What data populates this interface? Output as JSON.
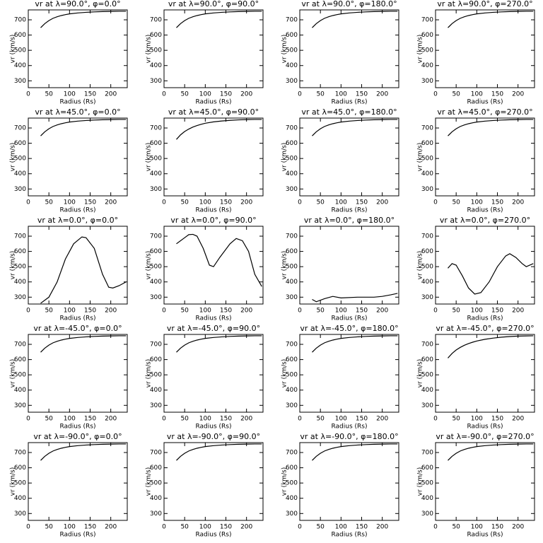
{
  "chart_data": [
    {
      "type": "line",
      "title": "vr at λ=90.0°, φ=0.0°",
      "xlabel": "Radius (Rs)",
      "ylabel": "vr (km/s)",
      "x": [
        30,
        40,
        50,
        60,
        70,
        80,
        90,
        100,
        120,
        140,
        160,
        180,
        200,
        220,
        237
      ],
      "values": [
        648,
        675,
        695,
        710,
        720,
        728,
        734,
        739,
        745,
        749,
        752,
        754,
        755,
        756,
        756
      ],
      "xlim": [
        0,
        240
      ],
      "ylim": [
        255,
        765
      ],
      "xticks": [
        0,
        50,
        100,
        150,
        200
      ],
      "yticks": [
        300,
        400,
        500,
        600,
        700
      ],
      "color": "#000000"
    },
    {
      "type": "line",
      "title": "vr at λ=90.0°, φ=90.0°",
      "xlabel": "Radius (Rs)",
      "ylabel": "vr (km/s)",
      "x": [
        30,
        40,
        50,
        60,
        70,
        80,
        90,
        100,
        120,
        140,
        160,
        180,
        200,
        220,
        237
      ],
      "values": [
        648,
        675,
        695,
        710,
        720,
        728,
        734,
        739,
        745,
        749,
        752,
        754,
        755,
        756,
        756
      ],
      "xlim": [
        0,
        240
      ],
      "ylim": [
        255,
        765
      ],
      "xticks": [
        0,
        50,
        100,
        150,
        200
      ],
      "yticks": [
        300,
        400,
        500,
        600,
        700
      ],
      "color": "#000000"
    },
    {
      "type": "line",
      "title": "vr at λ=90.0°, φ=180.0°",
      "xlabel": "Radius (Rs)",
      "ylabel": "vr (km/s)",
      "x": [
        30,
        40,
        50,
        60,
        70,
        80,
        90,
        100,
        120,
        140,
        160,
        180,
        200,
        220,
        237
      ],
      "values": [
        648,
        675,
        695,
        710,
        720,
        728,
        734,
        739,
        745,
        749,
        752,
        754,
        755,
        756,
        756
      ],
      "xlim": [
        0,
        240
      ],
      "ylim": [
        255,
        765
      ],
      "xticks": [
        0,
        50,
        100,
        150,
        200
      ],
      "yticks": [
        300,
        400,
        500,
        600,
        700
      ],
      "color": "#000000"
    },
    {
      "type": "line",
      "title": "vr at λ=90.0°, φ=270.0°",
      "xlabel": "Radius (Rs)",
      "ylabel": "vr (km/s)",
      "x": [
        30,
        40,
        50,
        60,
        70,
        80,
        90,
        100,
        120,
        140,
        160,
        180,
        200,
        220,
        237
      ],
      "values": [
        648,
        675,
        695,
        710,
        720,
        728,
        734,
        739,
        745,
        749,
        752,
        754,
        755,
        756,
        756
      ],
      "xlim": [
        0,
        240
      ],
      "ylim": [
        255,
        765
      ],
      "xticks": [
        0,
        50,
        100,
        150,
        200
      ],
      "yticks": [
        300,
        400,
        500,
        600,
        700
      ],
      "color": "#000000"
    },
    {
      "type": "line",
      "title": "vr at λ=45.0°, φ=0.0°",
      "xlabel": "Radius (Rs)",
      "ylabel": "vr (km/s)",
      "x": [
        30,
        40,
        50,
        60,
        70,
        80,
        90,
        100,
        120,
        140,
        160,
        180,
        200,
        220,
        237
      ],
      "values": [
        648,
        675,
        695,
        710,
        720,
        728,
        734,
        739,
        745,
        749,
        752,
        754,
        755,
        756,
        756
      ],
      "xlim": [
        0,
        240
      ],
      "ylim": [
        255,
        765
      ],
      "xticks": [
        0,
        50,
        100,
        150,
        200
      ],
      "yticks": [
        300,
        400,
        500,
        600,
        700
      ],
      "color": "#000000"
    },
    {
      "type": "line",
      "title": "vr at λ=45.0°, φ=90.0°",
      "xlabel": "Radius (Rs)",
      "ylabel": "vr (km/s)",
      "x": [
        30,
        40,
        50,
        60,
        70,
        80,
        90,
        100,
        120,
        140,
        160,
        180,
        200,
        220,
        237
      ],
      "values": [
        625,
        655,
        677,
        693,
        706,
        716,
        724,
        731,
        740,
        746,
        750,
        753,
        755,
        756,
        756
      ],
      "xlim": [
        0,
        240
      ],
      "ylim": [
        255,
        765
      ],
      "xticks": [
        0,
        50,
        100,
        150,
        200
      ],
      "yticks": [
        300,
        400,
        500,
        600,
        700
      ],
      "color": "#000000"
    },
    {
      "type": "line",
      "title": "vr at λ=45.0°, φ=180.0°",
      "xlabel": "Radius (Rs)",
      "ylabel": "vr (km/s)",
      "x": [
        30,
        40,
        50,
        60,
        70,
        80,
        90,
        100,
        120,
        140,
        160,
        180,
        200,
        220,
        237
      ],
      "values": [
        648,
        675,
        695,
        710,
        720,
        728,
        734,
        739,
        745,
        749,
        752,
        754,
        755,
        756,
        756
      ],
      "xlim": [
        0,
        240
      ],
      "ylim": [
        255,
        765
      ],
      "xticks": [
        0,
        50,
        100,
        150,
        200
      ],
      "yticks": [
        300,
        400,
        500,
        600,
        700
      ],
      "color": "#000000"
    },
    {
      "type": "line",
      "title": "vr at λ=45.0°, φ=270.0°",
      "xlabel": "Radius (Rs)",
      "ylabel": "vr (km/s)",
      "x": [
        30,
        40,
        50,
        60,
        70,
        80,
        90,
        100,
        120,
        140,
        160,
        180,
        200,
        220,
        237
      ],
      "values": [
        648,
        675,
        695,
        710,
        720,
        728,
        734,
        739,
        745,
        749,
        752,
        754,
        755,
        756,
        756
      ],
      "xlim": [
        0,
        240
      ],
      "ylim": [
        255,
        765
      ],
      "xticks": [
        0,
        50,
        100,
        150,
        200
      ],
      "yticks": [
        300,
        400,
        500,
        600,
        700
      ],
      "color": "#000000"
    },
    {
      "type": "line",
      "title": "vr at λ=0.0°, φ=0.0°",
      "xlabel": "Radius (Rs)",
      "ylabel": "vr (km/s)",
      "x": [
        30,
        50,
        70,
        90,
        110,
        130,
        140,
        160,
        180,
        195,
        205,
        220,
        237
      ],
      "values": [
        260,
        300,
        400,
        550,
        650,
        695,
        690,
        620,
        450,
        365,
        360,
        375,
        400
      ],
      "xlim": [
        0,
        240
      ],
      "ylim": [
        255,
        765
      ],
      "xticks": [
        0,
        50,
        100,
        150,
        200
      ],
      "yticks": [
        300,
        400,
        500,
        600,
        700
      ],
      "color": "#000000"
    },
    {
      "type": "line",
      "title": "vr at λ=0.0°, φ=90.0°",
      "xlabel": "Radius (Rs)",
      "ylabel": "vr (km/s)",
      "x": [
        30,
        50,
        60,
        70,
        80,
        95,
        110,
        120,
        135,
        160,
        175,
        190,
        205,
        220,
        237
      ],
      "values": [
        650,
        690,
        710,
        712,
        700,
        620,
        510,
        500,
        560,
        650,
        685,
        670,
        600,
        450,
        370
      ],
      "xlim": [
        0,
        240
      ],
      "ylim": [
        255,
        765
      ],
      "xticks": [
        0,
        50,
        100,
        150,
        200
      ],
      "yticks": [
        300,
        400,
        500,
        600,
        700
      ],
      "color": "#000000"
    },
    {
      "type": "line",
      "title": "vr at λ=0.0°, φ=180.0°",
      "xlabel": "Radius (Rs)",
      "ylabel": "vr (km/s)",
      "x": [
        30,
        40,
        60,
        80,
        100,
        140,
        180,
        200,
        220,
        237
      ],
      "values": [
        285,
        270,
        290,
        305,
        295,
        300,
        300,
        305,
        315,
        325
      ],
      "xlim": [
        0,
        240
      ],
      "ylim": [
        255,
        765
      ],
      "xticks": [
        0,
        50,
        100,
        150,
        200
      ],
      "yticks": [
        300,
        400,
        500,
        600,
        700
      ],
      "color": "#000000"
    },
    {
      "type": "line",
      "title": "vr at λ=0.0°, φ=270.0°",
      "xlabel": "Radius (Rs)",
      "ylabel": "vr (km/s)",
      "x": [
        30,
        40,
        50,
        65,
        80,
        95,
        110,
        130,
        150,
        170,
        180,
        195,
        210,
        220,
        237
      ],
      "values": [
        490,
        520,
        510,
        440,
        360,
        320,
        330,
        400,
        500,
        570,
        585,
        560,
        520,
        500,
        520
      ],
      "xlim": [
        0,
        240
      ],
      "ylim": [
        255,
        765
      ],
      "xticks": [
        0,
        50,
        100,
        150,
        200
      ],
      "yticks": [
        300,
        400,
        500,
        600,
        700
      ],
      "color": "#000000"
    },
    {
      "type": "line",
      "title": "vr at λ=-45.0°, φ=0.0°",
      "xlabel": "Radius (Rs)",
      "ylabel": "vr (km/s)",
      "x": [
        30,
        40,
        50,
        60,
        70,
        80,
        90,
        100,
        120,
        140,
        160,
        180,
        200,
        220,
        237
      ],
      "values": [
        648,
        675,
        695,
        710,
        720,
        728,
        734,
        739,
        745,
        749,
        752,
        754,
        755,
        756,
        756
      ],
      "xlim": [
        0,
        240
      ],
      "ylim": [
        255,
        765
      ],
      "xticks": [
        0,
        50,
        100,
        150,
        200
      ],
      "yticks": [
        300,
        400,
        500,
        600,
        700
      ],
      "color": "#000000"
    },
    {
      "type": "line",
      "title": "vr at λ=-45.0°, φ=90.0°",
      "xlabel": "Radius (Rs)",
      "ylabel": "vr (km/s)",
      "x": [
        30,
        40,
        50,
        60,
        70,
        80,
        90,
        100,
        120,
        140,
        160,
        180,
        200,
        220,
        237
      ],
      "values": [
        648,
        675,
        695,
        710,
        720,
        728,
        734,
        739,
        745,
        749,
        752,
        754,
        755,
        756,
        756
      ],
      "xlim": [
        0,
        240
      ],
      "ylim": [
        255,
        765
      ],
      "xticks": [
        0,
        50,
        100,
        150,
        200
      ],
      "yticks": [
        300,
        400,
        500,
        600,
        700
      ],
      "color": "#000000"
    },
    {
      "type": "line",
      "title": "vr at λ=-45.0°, φ=180.0°",
      "xlabel": "Radius (Rs)",
      "ylabel": "vr (km/s)",
      "x": [
        30,
        40,
        50,
        60,
        70,
        80,
        90,
        100,
        120,
        140,
        160,
        180,
        200,
        220,
        237
      ],
      "values": [
        648,
        675,
        695,
        710,
        720,
        728,
        734,
        739,
        745,
        749,
        752,
        754,
        755,
        756,
        756
      ],
      "xlim": [
        0,
        240
      ],
      "ylim": [
        255,
        765
      ],
      "xticks": [
        0,
        50,
        100,
        150,
        200
      ],
      "yticks": [
        300,
        400,
        500,
        600,
        700
      ],
      "color": "#000000"
    },
    {
      "type": "line",
      "title": "vr at λ=-45.0°, φ=270.0°",
      "xlabel": "Radius (Rs)",
      "ylabel": "vr (km/s)",
      "x": [
        30,
        40,
        50,
        60,
        70,
        80,
        90,
        100,
        120,
        140,
        160,
        180,
        200,
        220,
        237
      ],
      "values": [
        610,
        640,
        663,
        680,
        694,
        705,
        714,
        722,
        733,
        741,
        747,
        751,
        754,
        755,
        756
      ],
      "xlim": [
        0,
        240
      ],
      "ylim": [
        255,
        765
      ],
      "xticks": [
        0,
        50,
        100,
        150,
        200
      ],
      "yticks": [
        300,
        400,
        500,
        600,
        700
      ],
      "color": "#000000"
    },
    {
      "type": "line",
      "title": "vr at λ=-90.0°, φ=0.0°",
      "xlabel": "Radius (Rs)",
      "ylabel": "vr (km/s)",
      "x": [
        30,
        40,
        50,
        60,
        70,
        80,
        90,
        100,
        120,
        140,
        160,
        180,
        200,
        220,
        237
      ],
      "values": [
        648,
        675,
        695,
        710,
        720,
        728,
        734,
        739,
        745,
        749,
        752,
        754,
        755,
        756,
        756
      ],
      "xlim": [
        0,
        240
      ],
      "ylim": [
        255,
        765
      ],
      "xticks": [
        0,
        50,
        100,
        150,
        200
      ],
      "yticks": [
        300,
        400,
        500,
        600,
        700
      ],
      "color": "#000000"
    },
    {
      "type": "line",
      "title": "vr at λ=-90.0°, φ=90.0°",
      "xlabel": "Radius (Rs)",
      "ylabel": "vr (km/s)",
      "x": [
        30,
        40,
        50,
        60,
        70,
        80,
        90,
        100,
        120,
        140,
        160,
        180,
        200,
        220,
        237
      ],
      "values": [
        648,
        675,
        695,
        710,
        720,
        728,
        734,
        739,
        745,
        749,
        752,
        754,
        755,
        756,
        756
      ],
      "xlim": [
        0,
        240
      ],
      "ylim": [
        255,
        765
      ],
      "xticks": [
        0,
        50,
        100,
        150,
        200
      ],
      "yticks": [
        300,
        400,
        500,
        600,
        700
      ],
      "color": "#000000"
    },
    {
      "type": "line",
      "title": "vr at λ=-90.0°, φ=180.0°",
      "xlabel": "Radius (Rs)",
      "ylabel": "vr (km/s)",
      "x": [
        30,
        40,
        50,
        60,
        70,
        80,
        90,
        100,
        120,
        140,
        160,
        180,
        200,
        220,
        237
      ],
      "values": [
        648,
        675,
        695,
        710,
        720,
        728,
        734,
        739,
        745,
        749,
        752,
        754,
        755,
        756,
        756
      ],
      "xlim": [
        0,
        240
      ],
      "ylim": [
        255,
        765
      ],
      "xticks": [
        0,
        50,
        100,
        150,
        200
      ],
      "yticks": [
        300,
        400,
        500,
        600,
        700
      ],
      "color": "#000000"
    },
    {
      "type": "line",
      "title": "vr at λ=-90.0°, φ=270.0°",
      "xlabel": "Radius (Rs)",
      "ylabel": "vr (km/s)",
      "x": [
        30,
        40,
        50,
        60,
        70,
        80,
        90,
        100,
        120,
        140,
        160,
        180,
        200,
        220,
        237
      ],
      "values": [
        648,
        675,
        695,
        710,
        720,
        728,
        734,
        739,
        745,
        749,
        752,
        754,
        755,
        756,
        756
      ],
      "xlim": [
        0,
        240
      ],
      "ylim": [
        255,
        765
      ],
      "xticks": [
        0,
        50,
        100,
        150,
        200
      ],
      "yticks": [
        300,
        400,
        500,
        600,
        700
      ],
      "color": "#000000"
    }
  ]
}
